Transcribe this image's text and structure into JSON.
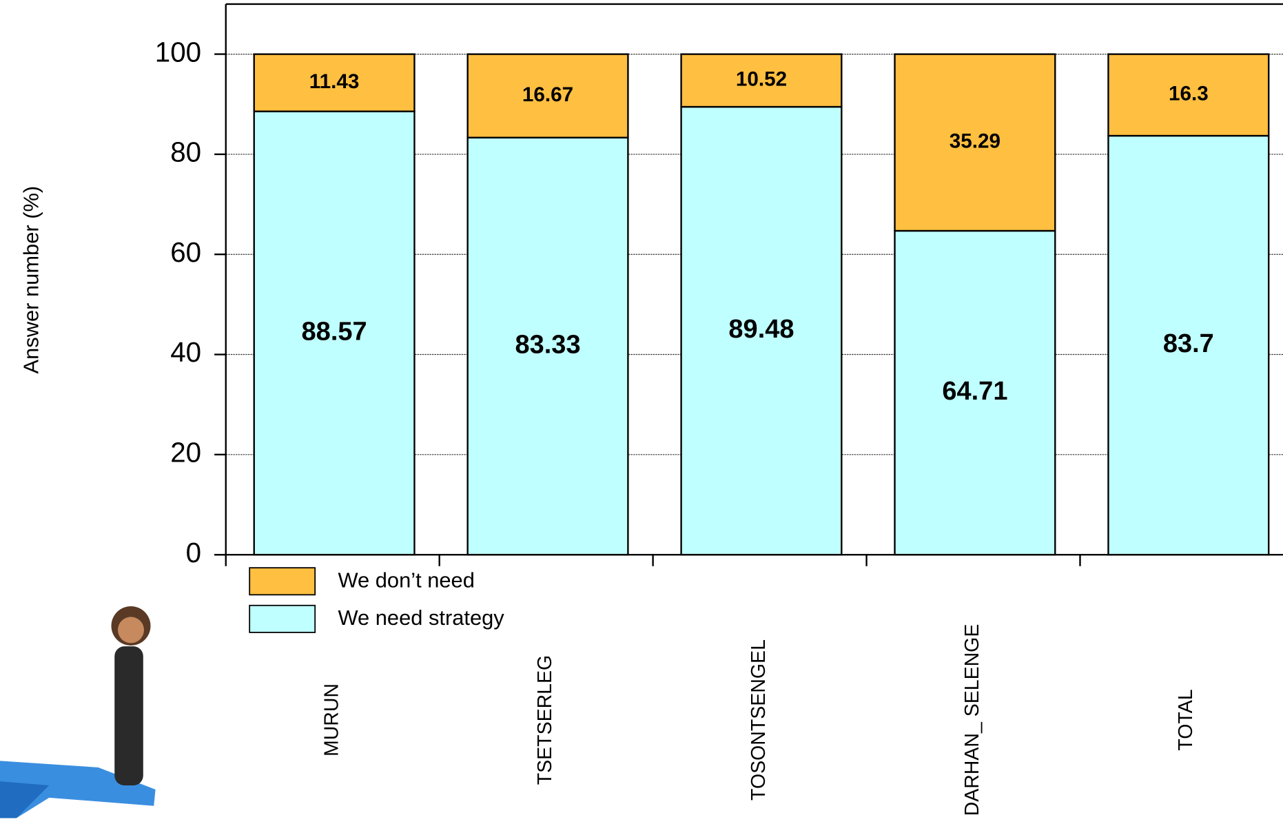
{
  "chart_data": {
    "type": "stacked_bar",
    "y_label": "Answer number (%)",
    "categories": [
      "MURUN",
      "TSETSERLEG",
      "TOSONTSENGEL",
      "DARHAN_ SELENGE",
      "TOTAL"
    ],
    "series": [
      {
        "name": "We need strategy",
        "color": "#c0ffff",
        "values": [
          88.57,
          83.33,
          89.48,
          64.71,
          83.7
        ]
      },
      {
        "name": "We don’t need",
        "color": "#ffbf40",
        "values": [
          11.43,
          16.67,
          10.52,
          35.29,
          16.3
        ]
      }
    ],
    "ylim": [
      0,
      110
    ],
    "yticks": [
      0,
      20,
      40,
      60,
      80,
      100
    ],
    "grid": true
  }
}
